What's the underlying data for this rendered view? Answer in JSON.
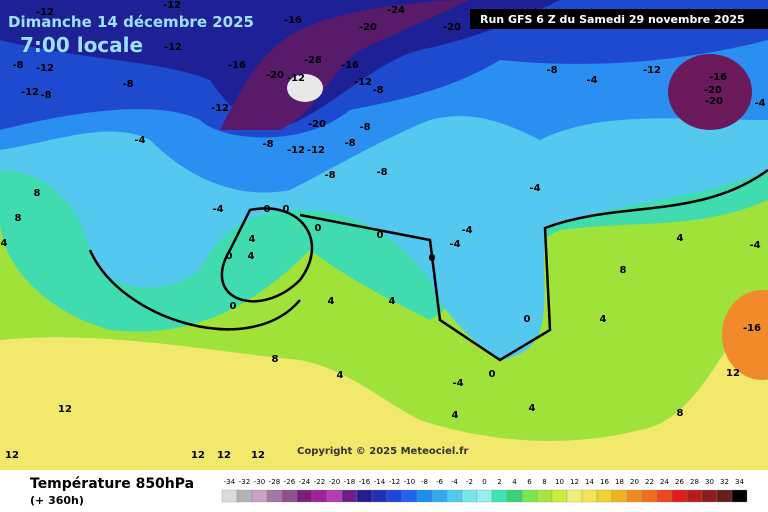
{
  "header": {
    "date": "Dimanche 14 décembre 2025",
    "time": "7:00 locale",
    "run": "Run GFS 6 Z du Samedi 29 novembre 2025",
    "copyright": "Copyright © 2025 Meteociel.fr"
  },
  "footer": {
    "title": "Température 850hPa",
    "range": "(+ 360h)"
  },
  "legend": {
    "values": [
      -34,
      -32,
      -30,
      -28,
      -26,
      -24,
      -22,
      -20,
      -18,
      -16,
      -14,
      -12,
      -10,
      -8,
      -6,
      -4,
      -2,
      0,
      2,
      4,
      6,
      8,
      10,
      12,
      14,
      16,
      18,
      20,
      22,
      24,
      26,
      28,
      30,
      32,
      34
    ],
    "colors": [
      "#dcdcdc",
      "#b4b4b4",
      "#c8a0c8",
      "#a078a0",
      "#8c508c",
      "#781e78",
      "#a01ea0",
      "#b43cb4",
      "#6e1e8c",
      "#1e1e8c",
      "#1e32b4",
      "#1e46dc",
      "#1e64f0",
      "#1e8cf0",
      "#32aaf0",
      "#50c8f0",
      "#78e6f0",
      "#96f0f0",
      "#3ce6b4",
      "#3cd278",
      "#78e650",
      "#a0e63c",
      "#c8f03c",
      "#f0f078",
      "#f0e650",
      "#f0d232",
      "#f0b41e",
      "#f08c1e",
      "#f06e1e",
      "#f0461e",
      "#dc1e1e",
      "#b41e1e",
      "#8c1e1e",
      "#641e1e",
      "#000000"
    ]
  },
  "map": {
    "contour_labels": [
      -12,
      -12,
      -16,
      -24,
      -20,
      -20,
      -12,
      -16,
      -8,
      -12,
      -8,
      -12,
      -8,
      -12,
      -20,
      -28,
      -12,
      -16,
      -12,
      -8,
      -20,
      -8,
      -12,
      -12,
      -8,
      -8,
      -8,
      -8,
      -8,
      -4,
      -12,
      -16,
      -20,
      -20,
      -4,
      -4,
      8,
      8,
      4,
      -4,
      0,
      0,
      4,
      4,
      0,
      0,
      0,
      0,
      4,
      4,
      0,
      -4,
      -4,
      -4,
      0,
      4,
      8,
      4,
      8,
      4,
      -4,
      4,
      4,
      8,
      -4,
      12,
      12,
      12,
      12,
      12,
      -16,
      12,
      0
    ]
  }
}
